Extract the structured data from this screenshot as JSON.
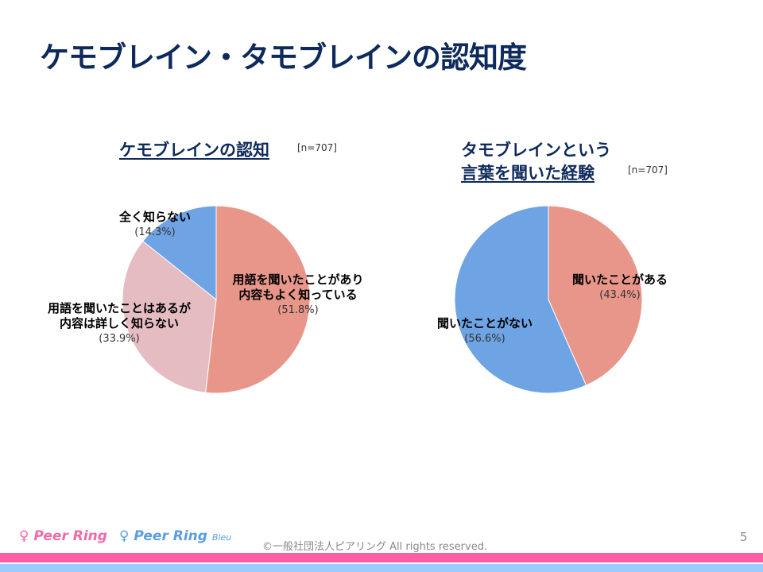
{
  "title": "ケモブレイン・タモブレインの認知度",
  "chart_data": [
    {
      "type": "pie",
      "title": "ケモブレインの認知",
      "n": "[n=707]",
      "slices": [
        {
          "label_lines": [
            "用語を聞いたことがあり",
            "内容もよく知っている"
          ],
          "pct_label": "(51.8%)",
          "value": 51.8,
          "color": "#E8968A"
        },
        {
          "label_lines": [
            "用語を聞いたことはあるが",
            "内容は詳しく知らない"
          ],
          "pct_label": "(33.9%)",
          "value": 33.9,
          "color": "#E6BCC3"
        },
        {
          "label_lines": [
            "全く知らない"
          ],
          "pct_label": "(14.3%)",
          "value": 14.3,
          "color": "#6EA3E4"
        }
      ]
    },
    {
      "type": "pie",
      "title_lines": [
        "タモブレインという",
        "言葉を聞いた経験"
      ],
      "n": "[n=707]",
      "slices": [
        {
          "label_lines": [
            "聞いたことがある"
          ],
          "pct_label": "(43.4%)",
          "value": 43.4,
          "color": "#E8968A"
        },
        {
          "label_lines": [
            "聞いたことがない"
          ],
          "pct_label": "(56.6%)",
          "value": 56.6,
          "color": "#6EA3E4"
        }
      ]
    }
  ],
  "footer": {
    "logo1": "Peer Ring",
    "logo2": "Peer Ring",
    "logo2_suffix": "Bleu",
    "copyright": "©一般社団法人ピアリング All rights reserved.",
    "page": "5"
  },
  "colors": {
    "pink_bar": "#FF5FA2",
    "blue_bar": "#99CCFF"
  }
}
